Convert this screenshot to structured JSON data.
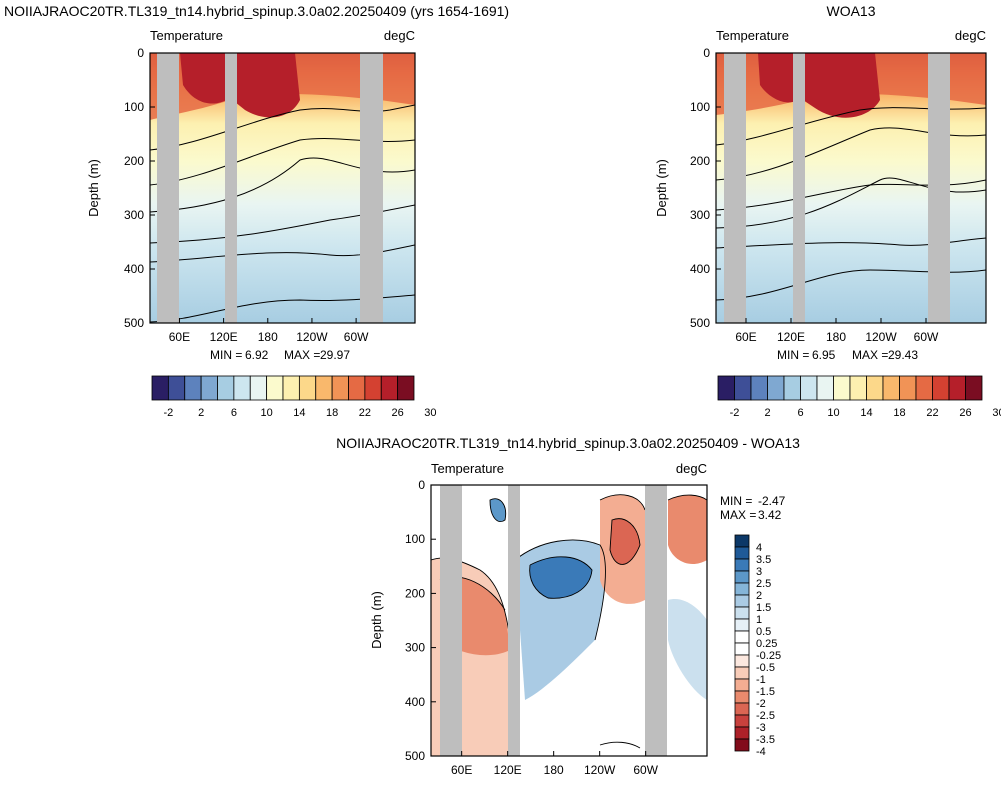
{
  "figure": {
    "panel_a_title": "NOIIAJRAOC20TR.TL319_tn14.hybrid_spinup.3.0a02.20250409 (yrs 1654-1691)",
    "panel_b_title": "WOA13",
    "panel_c_title": "NOIIAJRAOC20TR.TL319_tn14.hybrid_spinup.3.0a02.20250409 - WOA13"
  },
  "palettes": {
    "temperature": [
      "#2a1e64",
      "#3e4f97",
      "#5d82bd",
      "#7fa8d1",
      "#a7cde2",
      "#cde6ef",
      "#e9f5f2",
      "#fbfacd",
      "#fdf0b0",
      "#fcd88a",
      "#f9b86c",
      "#f19356",
      "#e56a44",
      "#d44131",
      "#b51f2a",
      "#7a0d22"
    ],
    "difference": [
      "#0c3868",
      "#1f5a98",
      "#3a7ab8",
      "#5c98c9",
      "#85b5d8",
      "#aacbe4",
      "#cbe0ee",
      "#e6f0f7",
      "#ffffff",
      "#ffffff",
      "#fce8df",
      "#f8ccb8",
      "#f3ad92",
      "#e98a6d",
      "#db6653",
      "#c8413d",
      "#ad2129",
      "#820c1b"
    ],
    "land": "#bebebe",
    "contour": "#000000"
  },
  "chart_data": [
    {
      "type": "heatmap",
      "title": "NOIIAJRAOC20TR.TL319_tn14.hybrid_spinup.3.0a02.20250409 (yrs 1654-1691)",
      "left_label": "Temperature",
      "right_label": "degC",
      "ylabel": "Depth (m)",
      "ylim": [
        0,
        500
      ],
      "y_reversed": true,
      "y_ticks": [
        "0",
        "100",
        "200",
        "300",
        "400",
        "500"
      ],
      "x_ticks": [
        "60E",
        "120E",
        "180",
        "120W",
        "60W"
      ],
      "x_tick_lon": [
        60,
        120,
        180,
        240,
        300
      ],
      "xlim_lon": [
        20,
        380
      ],
      "min_label": "MIN =",
      "min_value": "6.92",
      "max_label": "MAX =",
      "max_value": "29.97",
      "colorbar_labels": [
        "-2",
        "2",
        "6",
        "10",
        "14",
        "18",
        "22",
        "26",
        "30"
      ],
      "colorbar_levels": [
        -4,
        -2,
        0,
        2,
        4,
        6,
        8,
        10,
        12,
        14,
        16,
        18,
        20,
        22,
        24,
        26,
        28,
        30,
        32
      ]
    },
    {
      "type": "heatmap",
      "title": "WOA13",
      "left_label": "Temperature",
      "right_label": "degC",
      "ylabel": "Depth (m)",
      "ylim": [
        0,
        500
      ],
      "y_reversed": true,
      "y_ticks": [
        "0",
        "100",
        "200",
        "300",
        "400",
        "500"
      ],
      "x_ticks": [
        "60E",
        "120E",
        "180",
        "120W",
        "60W"
      ],
      "x_tick_lon": [
        60,
        120,
        180,
        240,
        300
      ],
      "xlim_lon": [
        20,
        380
      ],
      "min_label": "MIN =",
      "min_value": "6.95",
      "max_label": "MAX =",
      "max_value": "29.43",
      "colorbar_labels": [
        "-2",
        "2",
        "6",
        "10",
        "14",
        "18",
        "22",
        "26",
        "30"
      ],
      "colorbar_levels": [
        -4,
        -2,
        0,
        2,
        4,
        6,
        8,
        10,
        12,
        14,
        16,
        18,
        20,
        22,
        24,
        26,
        28,
        30,
        32
      ]
    },
    {
      "type": "heatmap",
      "title": "NOIIAJRAOC20TR.TL319_tn14.hybrid_spinup.3.0a02.20250409 - WOA13",
      "left_label": "Temperature",
      "right_label": "degC",
      "ylabel": "Depth (m)",
      "ylim": [
        0,
        500
      ],
      "y_reversed": true,
      "y_ticks": [
        "0",
        "100",
        "200",
        "300",
        "400",
        "500"
      ],
      "x_ticks": [
        "60E",
        "120E",
        "180",
        "120W",
        "60W"
      ],
      "x_tick_lon": [
        60,
        120,
        180,
        240,
        300
      ],
      "xlim_lon": [
        20,
        380
      ],
      "min_label": "MIN =",
      "min_value": "-2.47",
      "max_label": "MAX =",
      "max_value": "3.42",
      "colorbar_labels": [
        "4",
        "3.5",
        "3",
        "2.5",
        "2",
        "1.5",
        "1",
        "0.5",
        "0.25",
        "-0.25",
        "-0.5",
        "-1",
        "-1.5",
        "-2",
        "-2.5",
        "-3",
        "-3.5",
        "-4"
      ]
    }
  ]
}
